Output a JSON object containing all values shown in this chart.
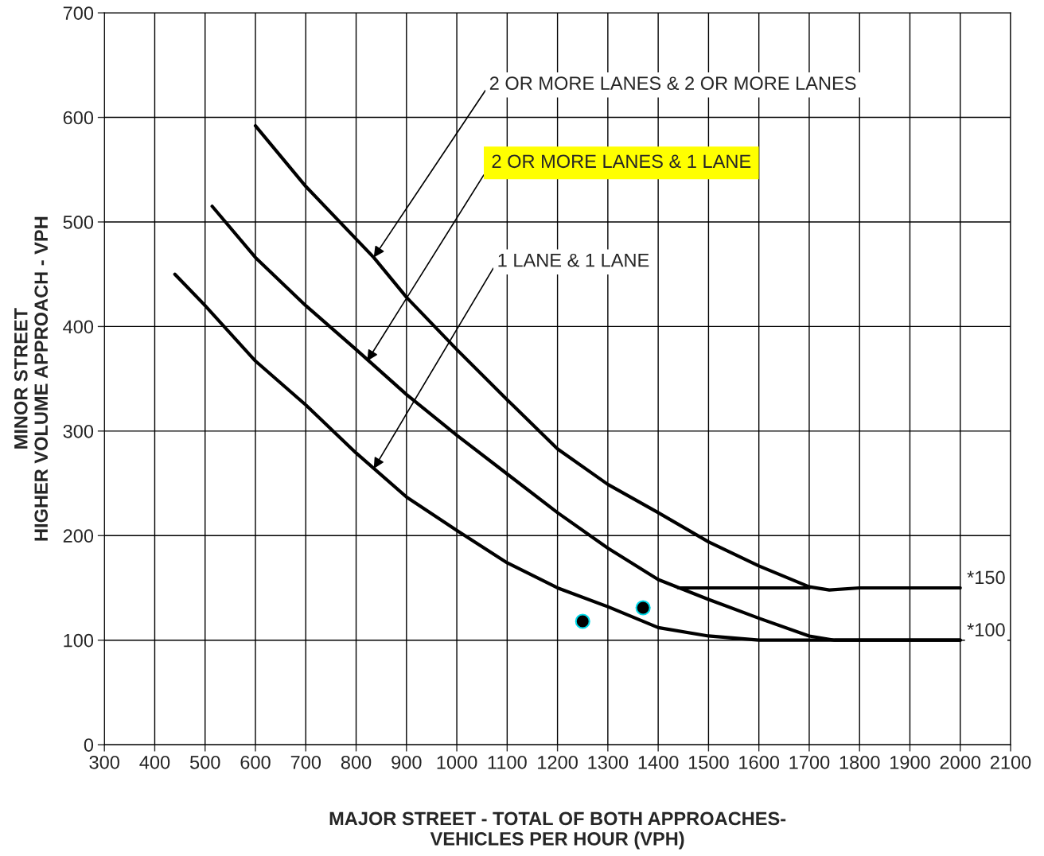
{
  "chart_data": {
    "type": "line",
    "xlabel": "MAJOR STREET - TOTAL OF BOTH APPROACHES-\nVEHICLES PER HOUR (VPH)",
    "ylabel": "MINOR STREET\nHIGHER VOLUME APPROACH - VPH",
    "xlim": [
      300,
      2100
    ],
    "xticks": [
      300,
      400,
      500,
      600,
      700,
      800,
      900,
      1000,
      1100,
      1200,
      1300,
      1400,
      1500,
      1600,
      1700,
      1800,
      1900,
      2000,
      2100
    ],
    "ylim": [
      0,
      700
    ],
    "yticks": [
      0,
      100,
      200,
      300,
      400,
      500,
      600,
      700
    ],
    "grid": true,
    "line_style": "solid",
    "series": [
      {
        "color": "#000000",
        "x": [
          600,
          700,
          835,
          900,
          1000,
          1100,
          1200,
          1300,
          1400,
          1500,
          1600,
          1700,
          1740,
          1800,
          2000
        ],
        "values": [
          592,
          534,
          466,
          428,
          378,
          330,
          283,
          249,
          222,
          194,
          171,
          151,
          148,
          150,
          150
        ]
      },
      {
        "color": "#000000",
        "x": [
          514,
          600,
          700,
          800,
          900,
          1000,
          1100,
          1200,
          1300,
          1400,
          1500,
          1600,
          1700,
          1750,
          2000
        ],
        "values": [
          515,
          466,
          420,
          378,
          335,
          296,
          259,
          222,
          188,
          158,
          139,
          121,
          104,
          100,
          100
        ]
      },
      {
        "color": "#000000",
        "x": [
          440,
          500,
          600,
          700,
          800,
          900,
          1000,
          1100,
          1200,
          1300,
          1400,
          1500,
          1600,
          2000
        ],
        "values": [
          450,
          420,
          367,
          325,
          279,
          237,
          205,
          174,
          150,
          132,
          112,
          104,
          100,
          100
        ]
      },
      {
        "color": "#000000",
        "x": [
          1440,
          1700
        ],
        "values": [
          150,
          150
        ]
      },
      {
        "type": "scatter",
        "color": "#000000",
        "marker": "circle",
        "x": [
          1250,
          1370
        ],
        "values": [
          118,
          131
        ]
      }
    ],
    "annotations": [
      {
        "text": "2 OR MORE LANES & 2 OR MORE LANES",
        "x": 835,
        "y": 466
      },
      {
        "text": "2 OR MORE LANES & 1 LANE",
        "x": 822,
        "y": 367
      },
      {
        "text": "1 LANE & 1 LANE",
        "x": 835,
        "y": 264
      },
      {
        "text": "*150",
        "x": 2000,
        "y": 150
      },
      {
        "text": "*100",
        "x": 2000,
        "y": 100
      }
    ]
  }
}
